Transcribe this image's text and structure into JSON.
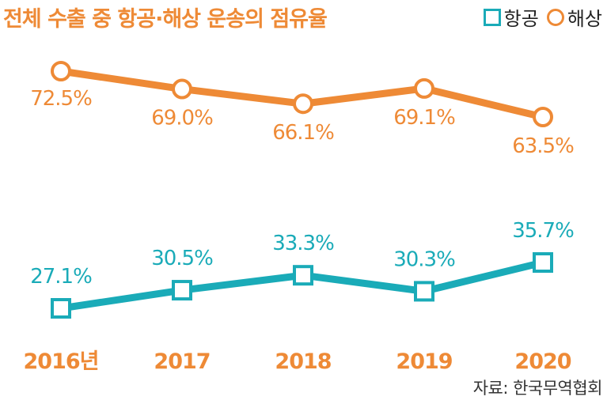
{
  "title": "전체 수출 중 항공·해상 운송의 점유율",
  "legend": {
    "air": "항공",
    "sea": "해상"
  },
  "source": "자료: 한국무역협회",
  "colors": {
    "air": "#1aabb8",
    "sea": "#ee8a36",
    "title": "#ee8a36",
    "year": "#ee8a36"
  },
  "chart_data": {
    "type": "line",
    "title": "전체 수출 중 항공·해상 운송의 점유율",
    "categories": [
      "2016년",
      "2017",
      "2018",
      "2019",
      "2020"
    ],
    "series": [
      {
        "name": "해상",
        "values": [
          72.5,
          69.0,
          66.1,
          69.1,
          63.5
        ],
        "labels": [
          "72.5%",
          "69.0%",
          "66.1%",
          "69.1%",
          "63.5%"
        ],
        "marker": "circle"
      },
      {
        "name": "항공",
        "values": [
          27.1,
          30.5,
          33.3,
          30.3,
          35.7
        ],
        "labels": [
          "27.1%",
          "30.5%",
          "33.3%",
          "30.3%",
          "35.7%"
        ],
        "marker": "square"
      }
    ],
    "grid": false,
    "legend_position": "top-right"
  }
}
